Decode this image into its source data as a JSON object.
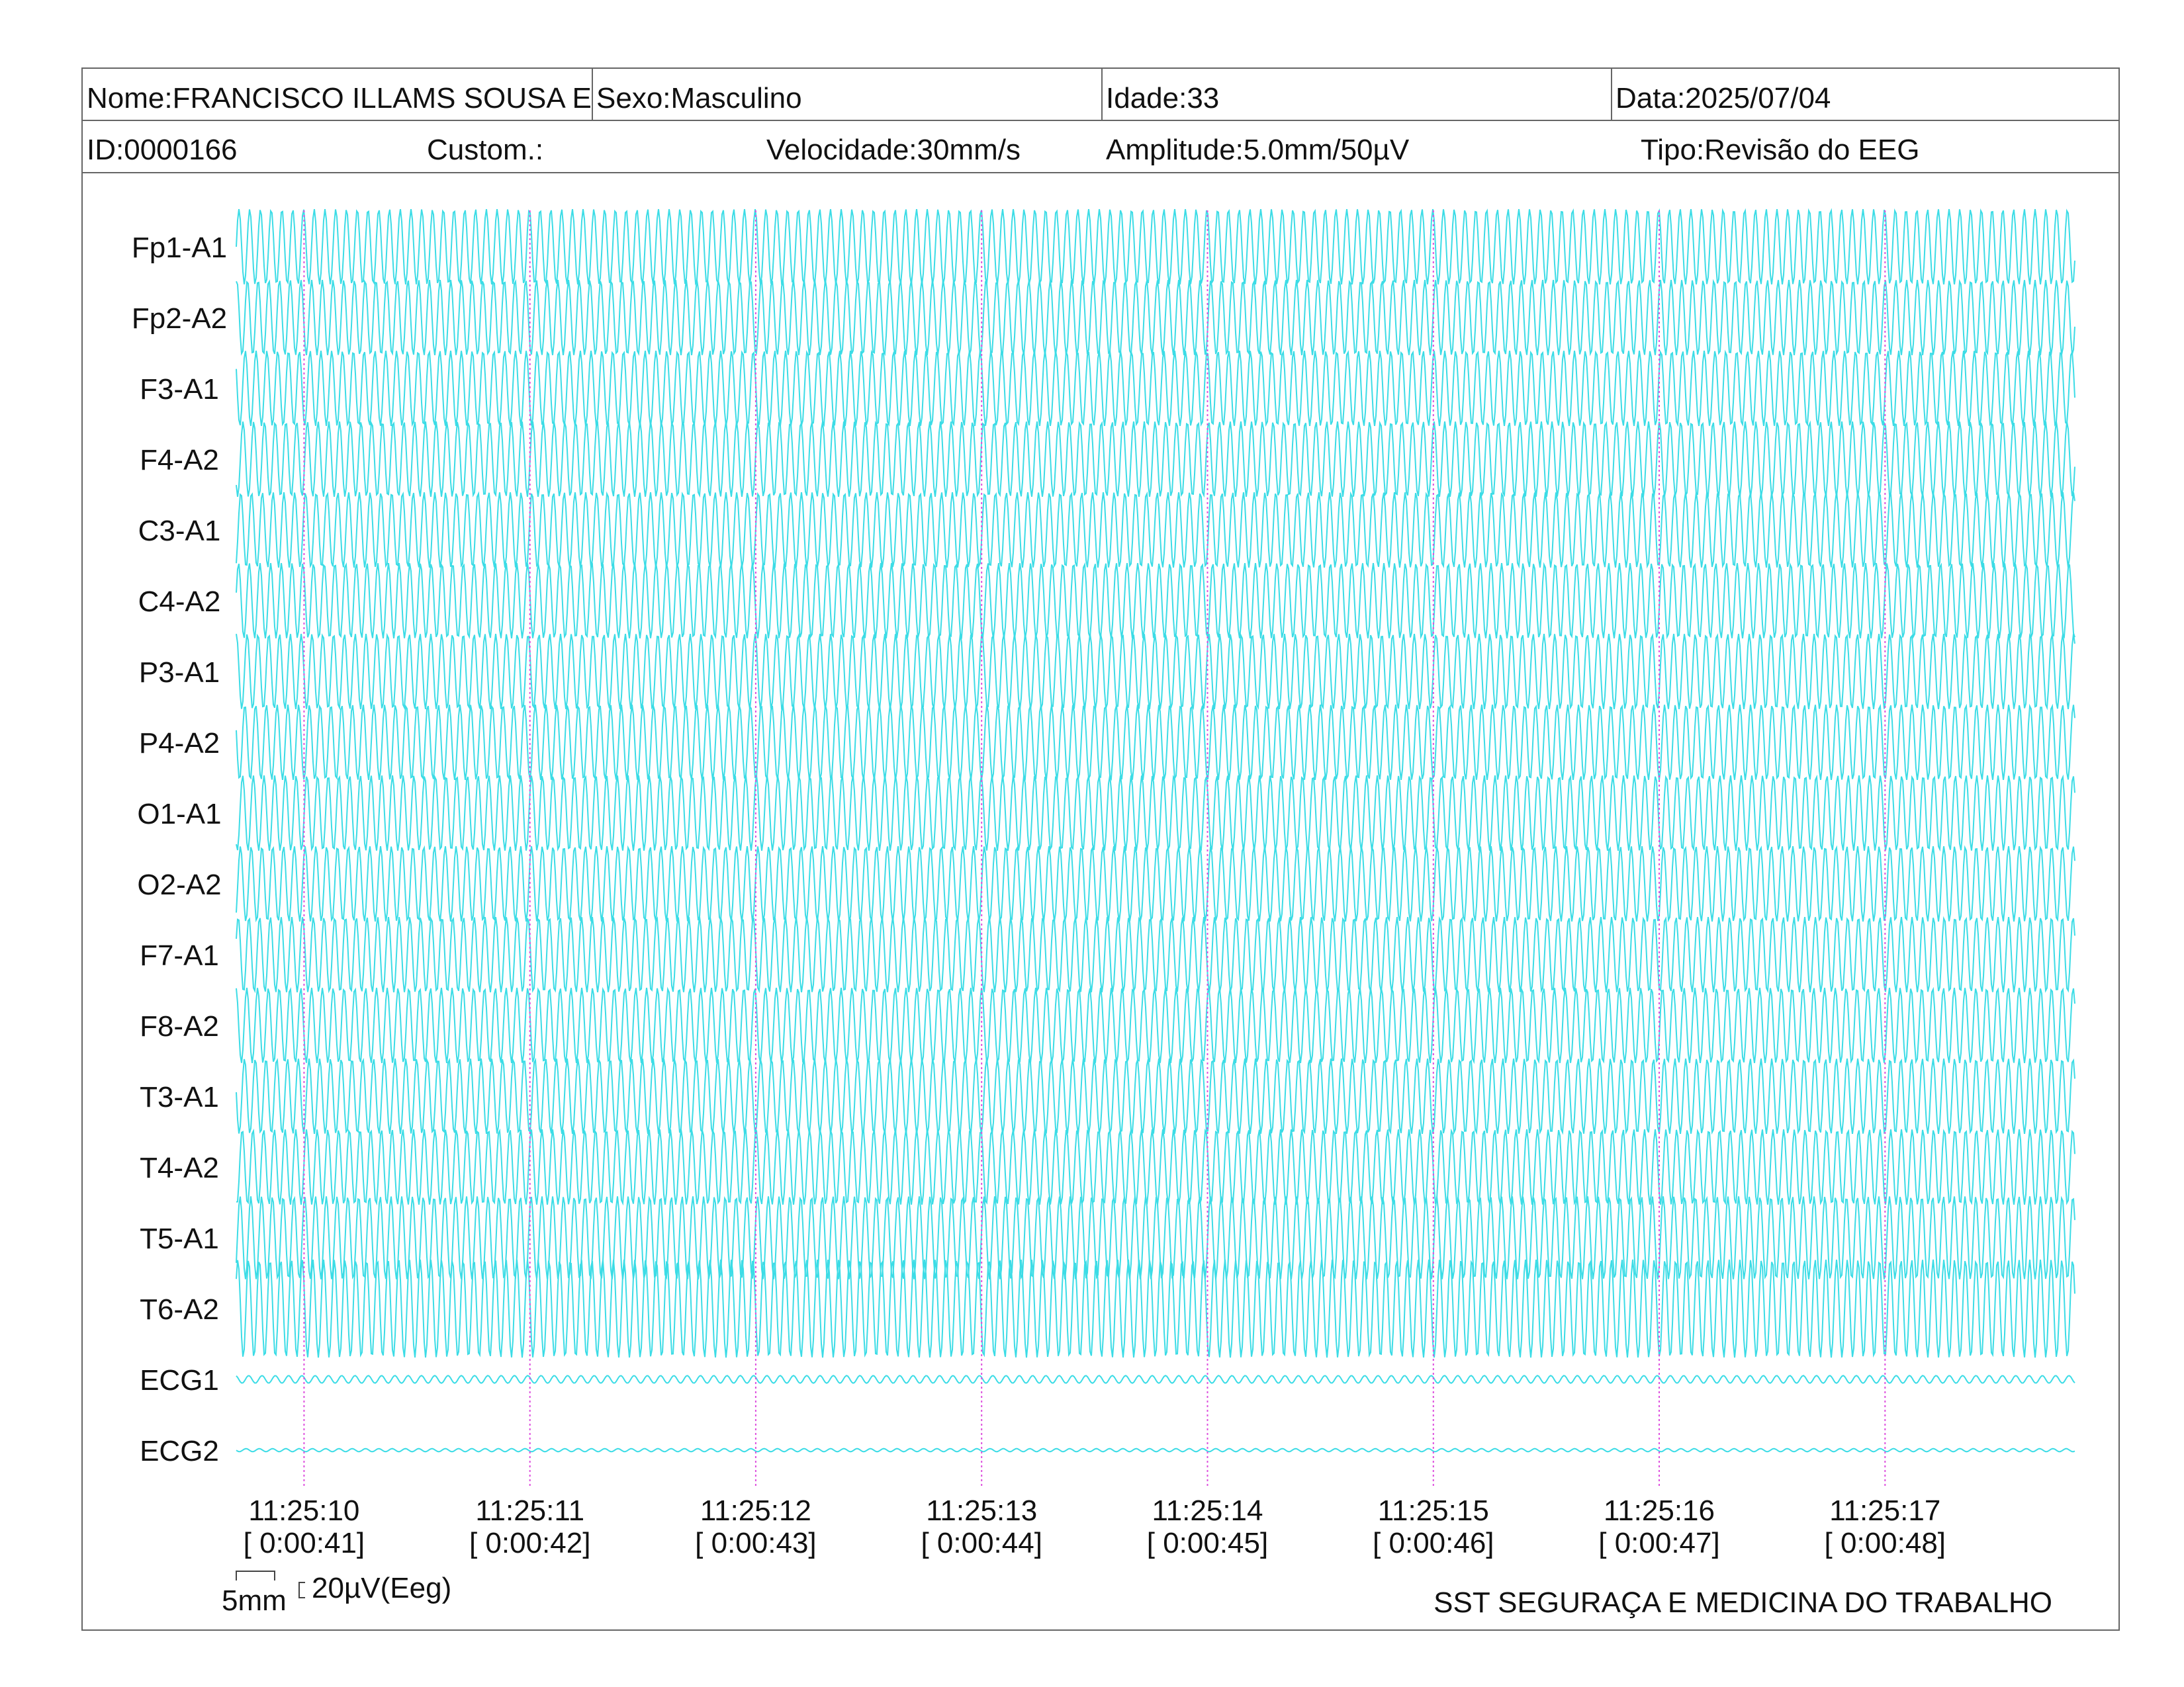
{
  "header": {
    "name": "Nome:FRANCISCO ILLAMS SOUSA E",
    "sex": "Sexo:Masculino",
    "age": "Idade:33",
    "date": "Data:2025/07/04",
    "id": "ID:0000166",
    "custom": "Custom.:",
    "speed": "Velocidade:30mm/s",
    "amplitude": "Amplitude:5.0mm/50µV",
    "type": "Tipo:Revisão do EEG"
  },
  "calibration": {
    "time_label": "5mm",
    "amplitude_label": "20µV(Eeg)"
  },
  "footer": {
    "organization": "SST SEGURAÇA E MEDICINA DO TRABALHO"
  },
  "colors": {
    "trace": "#3CDCE6",
    "marker": "#DE4FDE",
    "frame": "#666666",
    "text": "#111111"
  },
  "chart_data": {
    "type": "line",
    "grid": false,
    "xlim": [
      "11:25:09.70",
      "11:25:17.84"
    ],
    "x_ticks": [
      {
        "time": "11:25:10",
        "elapsed": "[ 0:00:41]"
      },
      {
        "time": "11:25:11",
        "elapsed": "[ 0:00:42]"
      },
      {
        "time": "11:25:12",
        "elapsed": "[ 0:00:43]"
      },
      {
        "time": "11:25:13",
        "elapsed": "[ 0:00:44]"
      },
      {
        "time": "11:25:14",
        "elapsed": "[ 0:00:45]"
      },
      {
        "time": "11:25:15",
        "elapsed": "[ 0:00:46]"
      },
      {
        "time": "11:25:16",
        "elapsed": "[ 0:00:47]"
      },
      {
        "time": "11:25:17",
        "elapsed": "[ 0:00:48]"
      }
    ],
    "series": [
      {
        "name": "Fp1-A1",
        "frequency_hz": 21.0,
        "amplitude_uV": 50
      },
      {
        "name": "Fp2-A2",
        "frequency_hz": 21.1,
        "amplitude_uV": 50
      },
      {
        "name": "F3-A1",
        "frequency_hz": 20.9,
        "amplitude_uV": 50
      },
      {
        "name": "F4-A2",
        "frequency_hz": 21.05,
        "amplitude_uV": 50
      },
      {
        "name": "C3-A1",
        "frequency_hz": 20.95,
        "amplitude_uV": 50
      },
      {
        "name": "C4-A2",
        "frequency_hz": 21.1,
        "amplitude_uV": 50
      },
      {
        "name": "P3-A1",
        "frequency_hz": 20.9,
        "amplitude_uV": 50
      },
      {
        "name": "P4-A2",
        "frequency_hz": 21.0,
        "amplitude_uV": 50
      },
      {
        "name": "O1-A1",
        "frequency_hz": 21.1,
        "amplitude_uV": 50
      },
      {
        "name": "O2-A2",
        "frequency_hz": 20.95,
        "amplitude_uV": 50
      },
      {
        "name": "F7-A1",
        "frequency_hz": 21.05,
        "amplitude_uV": 50
      },
      {
        "name": "F8-A2",
        "frequency_hz": 20.9,
        "amplitude_uV": 50
      },
      {
        "name": "T3-A1",
        "frequency_hz": 21.0,
        "amplitude_uV": 50
      },
      {
        "name": "T4-A2",
        "frequency_hz": 21.1,
        "amplitude_uV": 50
      },
      {
        "name": "T5-A1",
        "frequency_hz": 20.95,
        "amplitude_uV": 55
      },
      {
        "name": "T6-A2",
        "frequency_hz": 21.05,
        "amplitude_uV": 65
      },
      {
        "name": "ECG1",
        "frequency_hz": 17,
        "amplitude_uV": 5
      },
      {
        "name": "ECG2",
        "frequency_hz": 17,
        "amplitude_uV": 2
      }
    ]
  }
}
